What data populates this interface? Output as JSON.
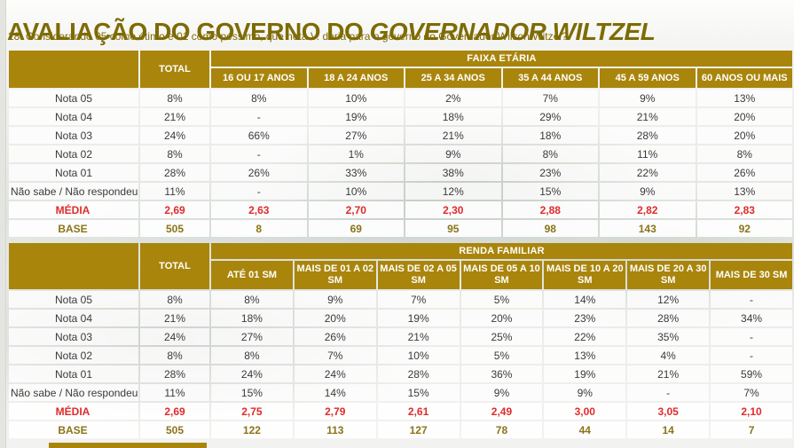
{
  "header": {
    "title_prefix": "AVALIAÇÃO DO GOVERNO DO ",
    "title_emphasis": "GOVERNADOR WILTZEL",
    "subtitle": "28. Considerando 05 como ótimo e 01 como péssimo, que nota V. daria para o governo do Governador Wilson Witzel?"
  },
  "colors": {
    "header_gold": "#A9850C",
    "title_gold": "#7E6B05",
    "media_red": "#E02B2B",
    "base_text_gold": "#8A7418"
  },
  "chart_data": [
    {
      "type": "table",
      "name": "faixa-etaria",
      "corner_label": "",
      "total_label": "TOTAL",
      "group_label": "FAIXA ETÁRIA",
      "columns": [
        "16 OU 17 ANOS",
        "18 A 24 ANOS",
        "25 A 34 ANOS",
        "35 A 44 ANOS",
        "45 A 59 ANOS",
        "60 ANOS OU MAIS"
      ],
      "rows": [
        {
          "label": "Nota 05",
          "style": "",
          "total": "8%",
          "values": [
            "8%",
            "10%",
            "2%",
            "7%",
            "9%",
            "13%"
          ]
        },
        {
          "label": "Nota 04",
          "style": "",
          "total": "21%",
          "values": [
            "-",
            "19%",
            "18%",
            "29%",
            "21%",
            "20%"
          ]
        },
        {
          "label": "Nota 03",
          "style": "",
          "total": "24%",
          "values": [
            "66%",
            "27%",
            "21%",
            "18%",
            "28%",
            "20%"
          ]
        },
        {
          "label": "Nota 02",
          "style": "",
          "total": "8%",
          "values": [
            "-",
            "1%",
            "9%",
            "8%",
            "11%",
            "8%"
          ]
        },
        {
          "label": "Nota 01",
          "style": "",
          "total": "28%",
          "values": [
            "26%",
            "33%",
            "38%",
            "23%",
            "22%",
            "26%"
          ]
        },
        {
          "label": "Não sabe / Não respondeu",
          "style": "",
          "total": "11%",
          "values": [
            "-",
            "10%",
            "12%",
            "15%",
            "9%",
            "13%"
          ]
        },
        {
          "label": "MÉDIA",
          "style": "media",
          "total": "2,69",
          "values": [
            "2,63",
            "2,70",
            "2,30",
            "2,88",
            "2,82",
            "2,83"
          ]
        },
        {
          "label": "BASE",
          "style": "base",
          "total": "505",
          "values": [
            "8",
            "69",
            "95",
            "98",
            "143",
            "92"
          ]
        }
      ]
    },
    {
      "type": "table",
      "name": "renda-familiar",
      "corner_label": "",
      "total_label": "TOTAL",
      "group_label": "RENDA FAMILIAR",
      "columns": [
        "ATÉ 01 SM",
        "MAIS DE 01 A 02 SM",
        "MAIS DE 02 A 05 SM",
        "MAIS DE 05 A 10 SM",
        "MAIS DE 10 A 20 SM",
        "MAIS DE 20 A 30 SM",
        "MAIS DE 30 SM"
      ],
      "rows": [
        {
          "label": "Nota 05",
          "style": "",
          "total": "8%",
          "values": [
            "8%",
            "9%",
            "7%",
            "5%",
            "14%",
            "12%",
            "-"
          ]
        },
        {
          "label": "Nota 04",
          "style": "",
          "total": "21%",
          "values": [
            "18%",
            "20%",
            "19%",
            "20%",
            "23%",
            "28%",
            "34%"
          ]
        },
        {
          "label": "Nota 03",
          "style": "",
          "total": "24%",
          "values": [
            "27%",
            "26%",
            "21%",
            "25%",
            "22%",
            "35%",
            "-"
          ]
        },
        {
          "label": "Nota 02",
          "style": "",
          "total": "8%",
          "values": [
            "8%",
            "7%",
            "10%",
            "5%",
            "13%",
            "4%",
            "-"
          ]
        },
        {
          "label": "Nota 01",
          "style": "",
          "total": "28%",
          "values": [
            "24%",
            "24%",
            "28%",
            "36%",
            "19%",
            "21%",
            "59%"
          ]
        },
        {
          "label": "Não sabe / Não respondeu",
          "style": "",
          "total": "11%",
          "values": [
            "15%",
            "14%",
            "15%",
            "9%",
            "9%",
            "-",
            "7%"
          ]
        },
        {
          "label": "MÉDIA",
          "style": "media",
          "total": "2,69",
          "values": [
            "2,75",
            "2,79",
            "2,61",
            "2,49",
            "3,00",
            "3,05",
            "2,10"
          ]
        },
        {
          "label": "BASE",
          "style": "base",
          "total": "505",
          "values": [
            "122",
            "113",
            "127",
            "78",
            "44",
            "14",
            "7"
          ]
        }
      ]
    }
  ]
}
